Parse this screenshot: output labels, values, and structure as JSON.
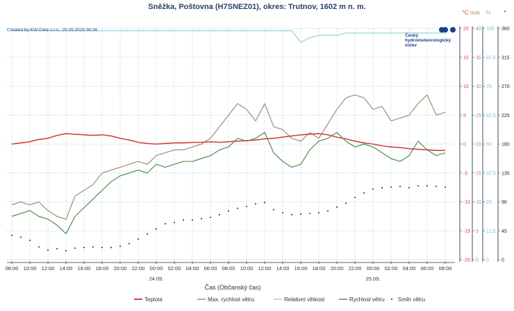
{
  "chart_data": {
    "type": "line",
    "title": "Sněžka, Poštovna (H7SNEZ01), okres: Trutnov, 1602 m n. m.",
    "credit": "Created by KW-Data s.r.o., 25.09.2025 08:26",
    "logo_text": [
      "Český",
      "hydrometeorologický",
      "ústav"
    ],
    "xlabel": "Čas (Občanský čas)",
    "x_ticks": [
      "08:00",
      "10:00",
      "12:00",
      "14:00",
      "16:00",
      "18:00",
      "20:00",
      "22:00",
      "00:00",
      "02:00",
      "04:00",
      "06:00",
      "08:00",
      "10:00",
      "12:00",
      "14:00",
      "16:00",
      "18:00",
      "20:00",
      "22:00",
      "00:00",
      "02:00",
      "04:00",
      "06:00",
      "08:00"
    ],
    "date_labels": [
      {
        "tick_index": 8,
        "label": "24.09."
      },
      {
        "tick_index": 20,
        "label": "25.09."
      }
    ],
    "x_step_hours": 1,
    "grid": true,
    "legend_position": "bottom",
    "axes": [
      {
        "unit": "°C",
        "color": "#d0423f",
        "range": [
          -20,
          20
        ],
        "ticks": [
          "-20",
          "-15",
          "-10",
          "-5",
          "0",
          "5",
          "10",
          "15",
          "20"
        ]
      },
      {
        "unit": "m/s",
        "color": "#a58a70",
        "range": [
          0,
          40
        ],
        "ticks": [
          "0",
          "5",
          "10",
          "15",
          "20",
          "25",
          "30",
          "35",
          "40"
        ]
      },
      {
        "unit": "%",
        "color": "#6cc4d0",
        "range": [
          0,
          100
        ],
        "ticks": [
          "0",
          "12,5",
          "25",
          "37,5",
          "50",
          "62,5",
          "75",
          "87,5",
          "100"
        ]
      },
      {
        "unit": "°",
        "color": "#222222",
        "range": [
          0,
          360
        ],
        "ticks": [
          "0",
          "45",
          "90",
          "135",
          "180",
          "225",
          "270",
          "315",
          "360"
        ]
      }
    ],
    "series": [
      {
        "name": "Teplota",
        "axis": 0,
        "color": "#d0423f",
        "style": "line",
        "values": [
          0.0,
          0.2,
          0.4,
          0.8,
          1.0,
          1.5,
          1.8,
          1.7,
          1.6,
          1.5,
          1.6,
          1.4,
          1.0,
          0.7,
          0.3,
          0.1,
          0.0,
          0.1,
          0.2,
          0.2,
          0.3,
          0.3,
          0.4,
          0.3,
          0.4,
          0.5,
          0.6,
          0.7,
          0.9,
          1.0,
          1.2,
          1.4,
          1.6,
          1.7,
          1.8,
          1.6,
          1.2,
          0.9,
          0.5,
          0.2,
          0.0,
          -0.3,
          -0.5,
          -0.6,
          -0.8,
          -0.9,
          -1.0,
          -1.1,
          -1.1
        ]
      },
      {
        "name": "Max. rychlost větru",
        "axis": 1,
        "color": "#a58a70",
        "style": "line",
        "values": [
          9.5,
          10,
          9.5,
          10,
          8.5,
          7.5,
          7,
          11,
          12,
          13,
          15,
          15.5,
          16,
          16.5,
          17,
          16.5,
          18,
          18.5,
          19,
          19,
          19.5,
          20,
          21,
          23,
          25,
          27,
          26,
          24,
          27,
          23,
          22.5,
          21,
          20.5,
          22,
          21,
          23.5,
          26,
          28,
          28.5,
          28,
          26,
          26.5,
          24,
          24.5,
          25,
          27,
          28.5,
          25,
          25.5
        ]
      },
      {
        "name": "Relativní vlhkost",
        "axis": 2,
        "color": "#8fd0da",
        "style": "line",
        "values": [
          99,
          99,
          99,
          99,
          99,
          99,
          99,
          99,
          99,
          99,
          99,
          99,
          99,
          99,
          99,
          99,
          99,
          99,
          99,
          99,
          99,
          99,
          99,
          99,
          99,
          99,
          99,
          99,
          99,
          99,
          99,
          99,
          94,
          96,
          97,
          97,
          97,
          98,
          98,
          98,
          98,
          98,
          98,
          98,
          98,
          98,
          98,
          98,
          98
        ]
      },
      {
        "name": "Rychlost větru",
        "axis": 1,
        "color": "#4e8f45",
        "style": "line",
        "values": [
          7.5,
          8,
          8.5,
          7.5,
          7,
          6,
          4.5,
          7.5,
          9,
          10.5,
          12,
          13.5,
          14.5,
          15,
          15.5,
          15,
          16.5,
          16,
          16.5,
          17,
          17,
          17.5,
          18,
          19,
          19.5,
          21,
          20.5,
          21,
          22,
          18.5,
          17,
          16,
          16.5,
          19,
          20.5,
          21,
          22,
          20.5,
          19.5,
          20,
          19.5,
          18.5,
          17.5,
          17,
          18,
          20.5,
          19,
          18,
          18.5
        ]
      },
      {
        "name": "Směr větru",
        "axis": 3,
        "color": "#222222",
        "style": "dots",
        "values": [
          38,
          35,
          30,
          20,
          15,
          17,
          14,
          18,
          19,
          20,
          19,
          19,
          21,
          25,
          32,
          40,
          48,
          56,
          58,
          62,
          62,
          64,
          66,
          70,
          76,
          80,
          83,
          87,
          89,
          78,
          73,
          70,
          71,
          72,
          73,
          76,
          82,
          88,
          97,
          104,
          110,
          112,
          113,
          114,
          112,
          115,
          115,
          114,
          113
        ]
      }
    ]
  }
}
